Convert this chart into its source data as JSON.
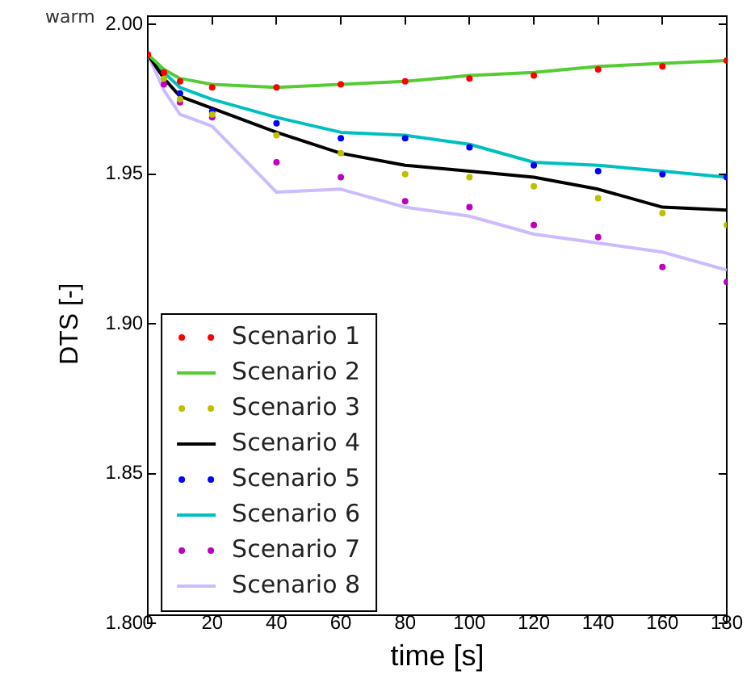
{
  "chart_data": {
    "type": "line",
    "xlabel": "time [s]",
    "ylabel": "DTS [-]",
    "annotations": [
      "warm"
    ],
    "x": [
      0,
      5,
      10,
      20,
      40,
      60,
      80,
      100,
      120,
      140,
      160,
      180
    ],
    "xlim": [
      0,
      180
    ],
    "xticks": [
      0,
      20,
      40,
      60,
      80,
      100,
      120,
      140,
      160,
      180
    ],
    "ylim": [
      1.8,
      2.0
    ],
    "yticks": [
      {
        "value": 1.8,
        "label": "1.80"
      },
      {
        "value": 1.85,
        "label": "1.85"
      },
      {
        "value": 1.9,
        "label": "1.90"
      },
      {
        "value": 1.95,
        "label": "1.95"
      },
      {
        "value": 2.0,
        "label": "2.00"
      }
    ],
    "grid": false,
    "legend": "bottom left",
    "series": [
      {
        "name": "Scenario 1",
        "type": "scatter",
        "marker": "circle",
        "color": "#ff0000",
        "values": [
          1.99,
          1.984,
          1.981,
          1.979,
          1.979,
          1.98,
          1.981,
          1.982,
          1.983,
          1.985,
          1.986,
          1.988
        ]
      },
      {
        "name": "Scenario 2",
        "marker": "none",
        "color": "#55cc33",
        "values": [
          1.99,
          1.985,
          1.982,
          1.98,
          1.979,
          1.98,
          1.981,
          1.983,
          1.984,
          1.986,
          1.987,
          1.988
        ]
      },
      {
        "name": "Scenario 3",
        "type": "scatter",
        "marker": "circle",
        "color": "#bfbf00",
        "values": [
          null,
          1.982,
          1.975,
          1.97,
          1.963,
          1.957,
          1.95,
          1.949,
          1.946,
          1.942,
          1.937,
          1.933
        ]
      },
      {
        "name": "Scenario 4",
        "marker": "none",
        "color": "#000000",
        "values": [
          1.99,
          1.982,
          1.976,
          1.972,
          1.964,
          1.957,
          1.953,
          1.951,
          1.949,
          1.945,
          1.939,
          1.938
        ]
      },
      {
        "name": "Scenario 5",
        "type": "scatter",
        "marker": "circle",
        "color": "#0000ff",
        "values": [
          null,
          null,
          1.977,
          1.971,
          1.967,
          1.962,
          1.962,
          1.959,
          1.953,
          1.951,
          1.95,
          1.949
        ]
      },
      {
        "name": "Scenario 6",
        "marker": "none",
        "color": "#00bfbf",
        "values": [
          1.99,
          1.984,
          1.979,
          1.975,
          1.969,
          1.964,
          1.963,
          1.96,
          1.954,
          1.953,
          1.951,
          1.949
        ]
      },
      {
        "name": "Scenario 7",
        "type": "scatter",
        "marker": "circle",
        "color": "#bf00bf",
        "values": [
          null,
          1.98,
          1.974,
          1.969,
          1.954,
          1.949,
          1.941,
          1.939,
          1.933,
          1.929,
          1.919,
          1.914
        ]
      },
      {
        "name": "Scenario 8",
        "marker": "none",
        "color": "#ccbbff",
        "values": [
          1.99,
          1.978,
          1.97,
          1.966,
          1.944,
          1.945,
          1.939,
          1.936,
          1.93,
          1.927,
          1.924,
          1.918
        ]
      }
    ]
  }
}
